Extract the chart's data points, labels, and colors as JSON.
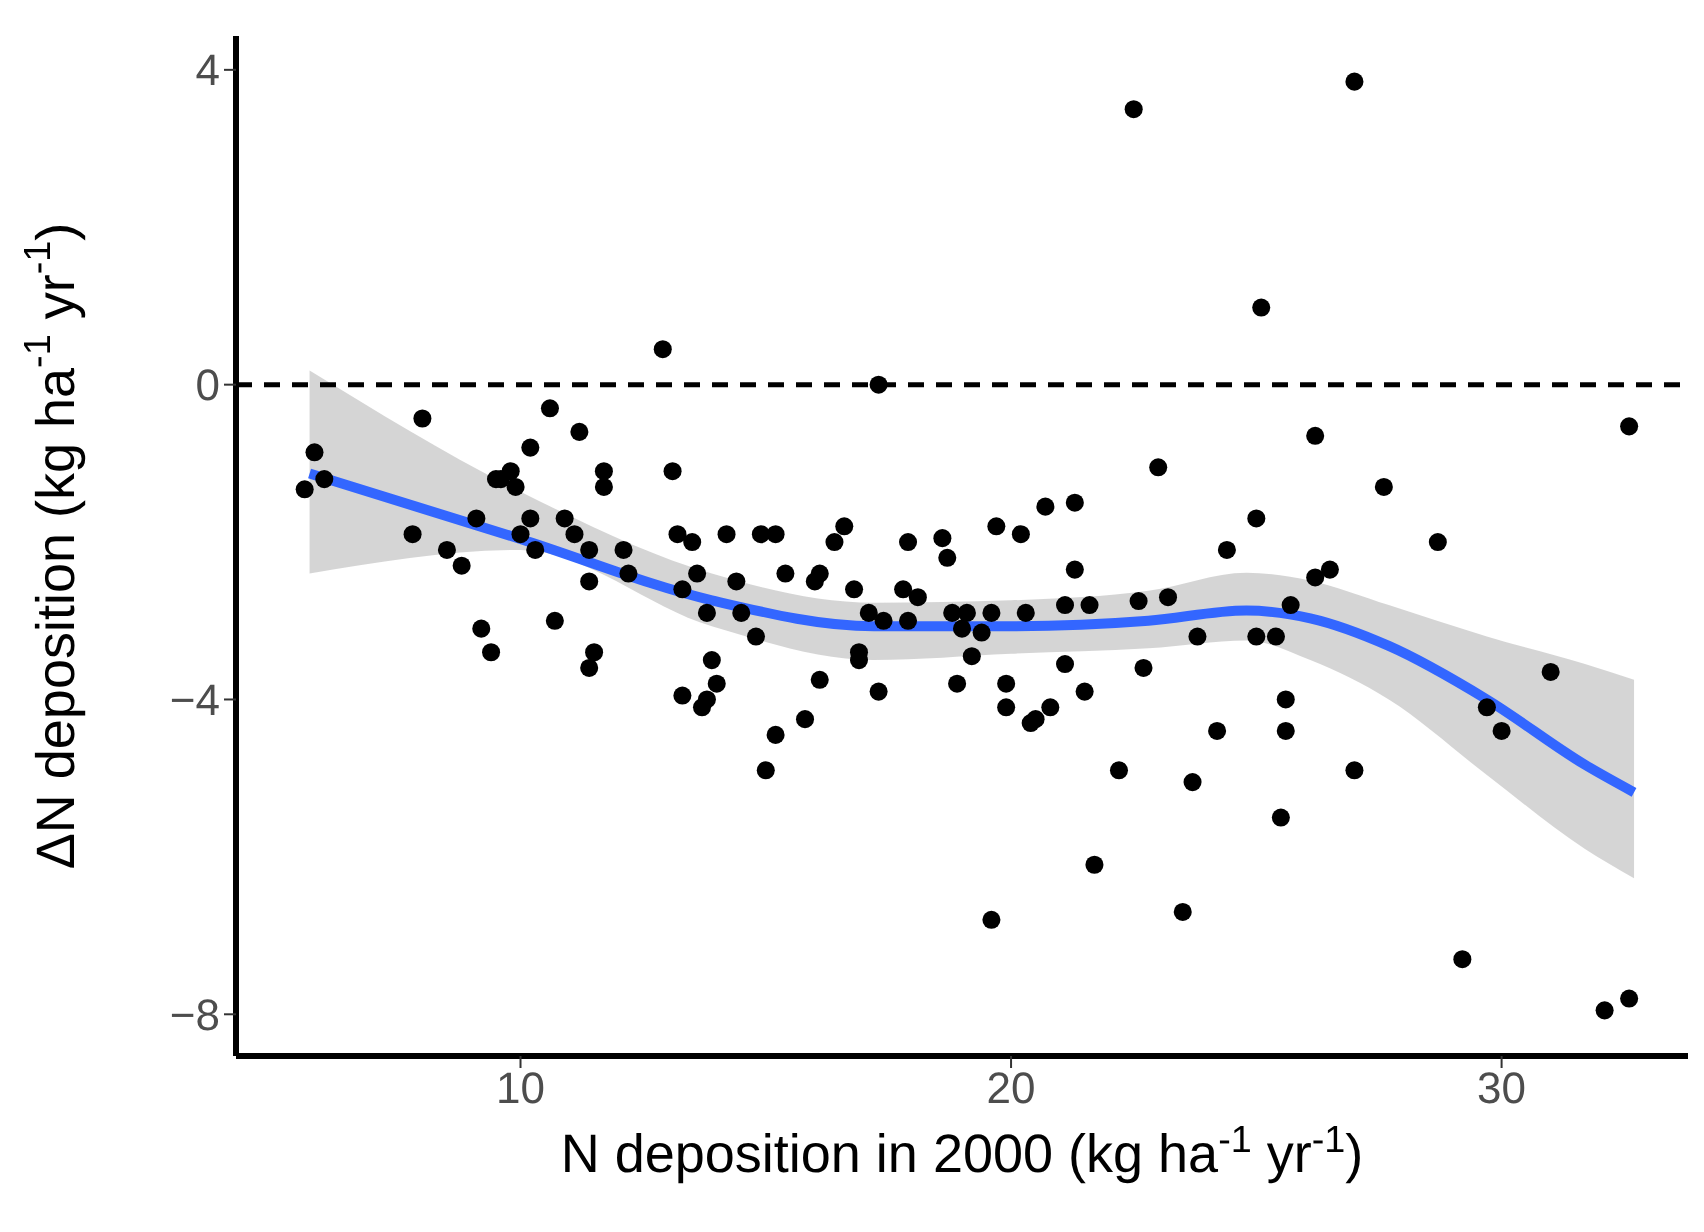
{
  "chart_data": {
    "type": "scatter",
    "xlabel": "N deposition in 2000 (kg ha$^{-1}$ yr$^{-1}$)",
    "ylabel": "ΔN deposition (kg ha$^{-1}$ yr$^{-1}$)",
    "xlim": [
      4.2,
      33.8
    ],
    "ylim": [
      -8.53,
      4.43
    ],
    "xticks": [
      10,
      20,
      30
    ],
    "yticks": [
      {
        "value": -8,
        "label": "−8"
      },
      {
        "value": -4,
        "label": "−4"
      },
      0,
      4
    ],
    "grid": false,
    "legend": false,
    "ref_lines": [
      {
        "axis": "y",
        "value": 0,
        "color": "#000000",
        "line_style": "dashed"
      }
    ],
    "series": [
      {
        "marker": "circle",
        "color": "#000000",
        "x": [
          5.6,
          5.8,
          6.0,
          8.0,
          7.8,
          8.5,
          8.8,
          9.1,
          9.2,
          9.4,
          9.5,
          9.6,
          9.8,
          9.9,
          10.0,
          10.2,
          10.2,
          10.3,
          10.6,
          10.7,
          10.9,
          11.1,
          11.2,
          11.4,
          11.4,
          11.4,
          11.5,
          11.7,
          11.7,
          12.1,
          12.2,
          12.9,
          13.1,
          13.2,
          13.3,
          13.3,
          13.5,
          13.6,
          13.8,
          13.7,
          13.8,
          13.9,
          14.0,
          14.2,
          14.4,
          14.5,
          14.8,
          14.9,
          15.0,
          15.2,
          15.2,
          15.4,
          15.8,
          16.0,
          16.1,
          16.1,
          16.4,
          16.6,
          16.8,
          16.9,
          17.1,
          17.3,
          16.9,
          17.3,
          17.4,
          17.8,
          17.9,
          17.9,
          18.1,
          18.6,
          18.7,
          18.8,
          18.9,
          19.0,
          19.1,
          19.2,
          19.4,
          19.6,
          19.6,
          19.7,
          19.9,
          19.9,
          20.3,
          20.2,
          20.4,
          20.5,
          20.7,
          20.8,
          21.1,
          21.1,
          21.3,
          21.3,
          21.5,
          21.6,
          21.7,
          22.2,
          22.5,
          22.6,
          22.7,
          23.0,
          23.2,
          23.5,
          23.7,
          23.8,
          24.2,
          24.4,
          25.0,
          25.1,
          25.0,
          25.4,
          25.5,
          25.6,
          25.6,
          25.7,
          26.2,
          26.2,
          26.5,
          27.0,
          27.0,
          27.6,
          28.7,
          29.2,
          29.7,
          30.0,
          31.0,
          32.1,
          32.6,
          32.6
        ],
        "values": [
          -1.33,
          -0.86,
          -1.2,
          -0.43,
          -1.9,
          -2.1,
          -2.3,
          -1.7,
          -3.1,
          -3.4,
          -1.2,
          -1.2,
          -1.1,
          -1.3,
          -1.9,
          -0.8,
          -1.7,
          -2.1,
          -0.3,
          -3.0,
          -1.7,
          -1.9,
          -0.6,
          -2.1,
          -3.6,
          -2.5,
          -3.4,
          -1.1,
          -1.3,
          -2.1,
          -2.4,
          0.45,
          -1.1,
          -1.9,
          -2.6,
          -3.95,
          -2.0,
          -2.4,
          -2.9,
          -4.1,
          -4.0,
          -3.5,
          -3.8,
          -1.9,
          -2.5,
          -2.9,
          -3.2,
          -1.9,
          -4.9,
          -1.9,
          -4.45,
          -2.4,
          -4.25,
          -2.5,
          -2.4,
          -3.75,
          -2.0,
          -1.8,
          -2.6,
          -3.5,
          -2.9,
          0.0,
          -3.4,
          -3.9,
          -3.0,
          -2.6,
          -2.0,
          -3.0,
          -2.7,
          -1.95,
          -2.2,
          -2.9,
          -3.8,
          -3.1,
          -2.9,
          -3.45,
          -3.15,
          -2.9,
          -6.8,
          -1.8,
          -3.8,
          -4.1,
          -2.9,
          -1.9,
          -4.3,
          -4.25,
          -1.55,
          -4.1,
          -3.55,
          -2.8,
          -1.5,
          -2.35,
          -3.9,
          -2.8,
          -6.1,
          -4.9,
          3.5,
          -2.75,
          -3.6,
          -1.05,
          -2.7,
          -6.7,
          -5.05,
          -3.2,
          -4.4,
          -2.1,
          -1.7,
          0.98,
          -3.2,
          -3.2,
          -5.5,
          -4.0,
          -4.4,
          -2.8,
          -0.65,
          -2.45,
          -2.35,
          3.85,
          -4.9,
          -1.3,
          -2.0,
          -7.3,
          -4.1,
          -4.4,
          -3.65,
          -7.95,
          -0.53,
          -7.8
        ]
      },
      {
        "type": "line",
        "marker": "none",
        "color": "#3366ff",
        "x": [
          5.7,
          10,
          13.9,
          17.2,
          20,
          22.8,
          24.8,
          26.1,
          27.7,
          29.7,
          31.7,
          32.7
        ],
        "values": [
          -1.13,
          -1.96,
          -2.74,
          -3.07,
          -3.07,
          -3.0,
          -2.87,
          -2.97,
          -3.32,
          -4.0,
          -4.83,
          -5.18
        ],
        "lower": [
          -2.4,
          -2.1,
          -3.07,
          -3.5,
          -3.42,
          -3.35,
          -3.25,
          -3.5,
          -4.0,
          -4.96,
          -5.9,
          -6.27
        ],
        "upper": [
          0.18,
          -1.36,
          -2.4,
          -2.77,
          -2.74,
          -2.62,
          -2.39,
          -2.49,
          -2.8,
          -3.2,
          -3.55,
          -3.75
        ]
      }
    ]
  }
}
